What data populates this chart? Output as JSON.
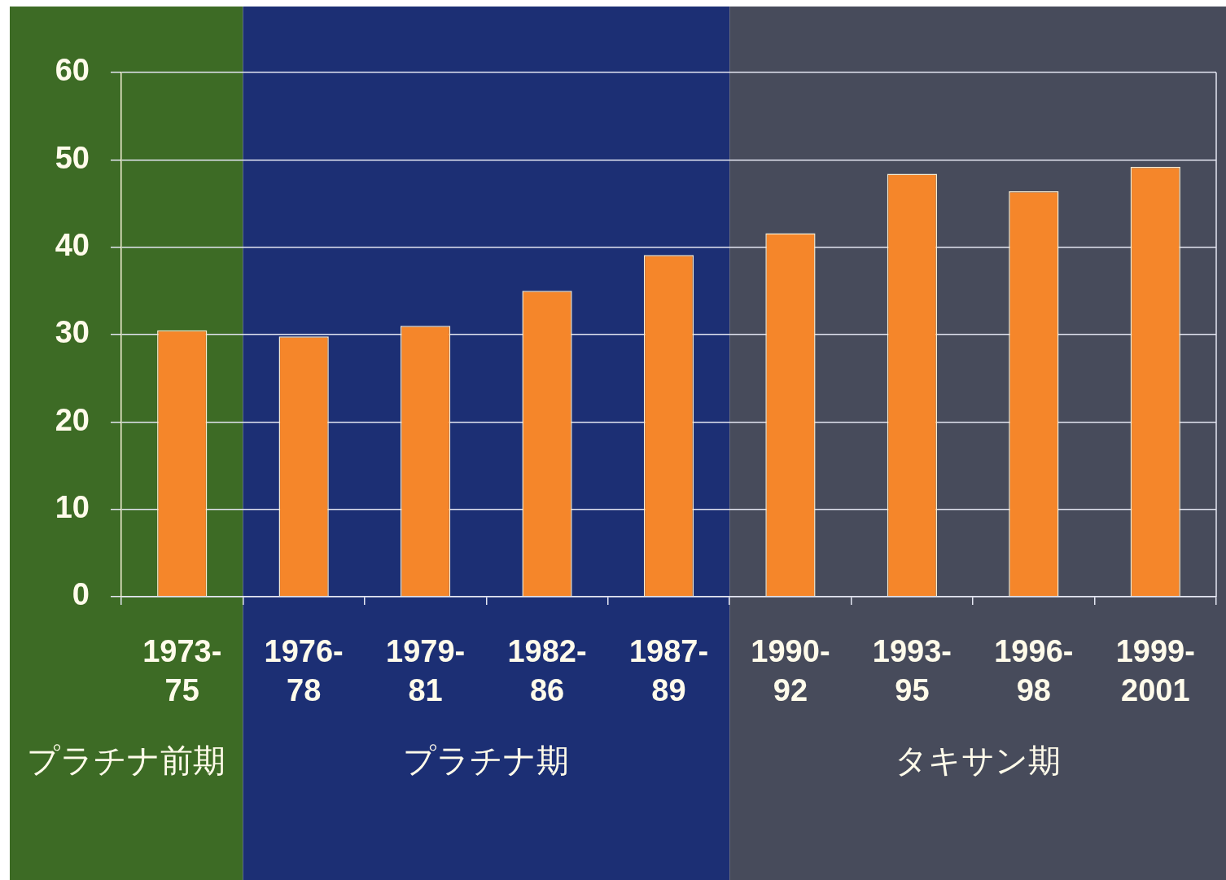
{
  "chart_data": {
    "type": "bar",
    "categories": [
      "1973-75",
      "1976-78",
      "1979-81",
      "1982-86",
      "1987-89",
      "1990-92",
      "1993-95",
      "1996-98",
      "1999-2001"
    ],
    "values": [
      30.5,
      29.8,
      31.0,
      35.0,
      39.1,
      41.6,
      48.4,
      46.4,
      49.2
    ],
    "color": "#f5862a",
    "ylim": [
      0,
      60
    ],
    "yticks": [
      0,
      10,
      20,
      30,
      40,
      50,
      60
    ],
    "grid": "y",
    "bands": [
      {
        "axis": "x",
        "from": "1973-75",
        "to": "1973-75",
        "label": "プラチナ前期",
        "color": "#3d6b25"
      },
      {
        "axis": "x",
        "from": "1976-78",
        "to": "1987-89",
        "label": "プラチナ期",
        "color": "#1c2f74"
      },
      {
        "axis": "x",
        "from": "1990-92",
        "to": "1999-2001",
        "label": "タキサン期",
        "color": "#474b5b"
      }
    ]
  }
}
